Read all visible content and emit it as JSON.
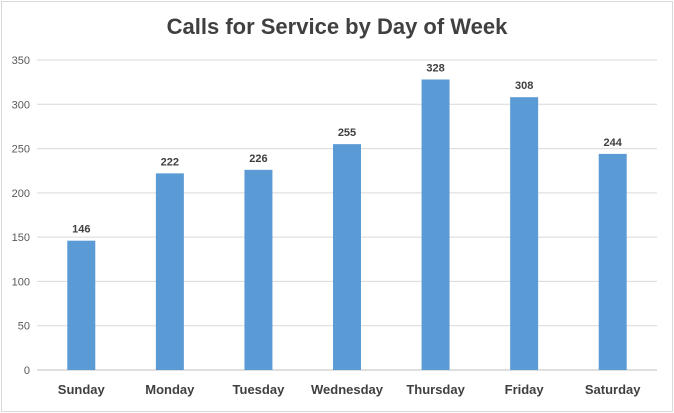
{
  "chart_data": {
    "type": "bar",
    "title": "Calls for Service by Day of Week",
    "categories": [
      "Sunday",
      "Monday",
      "Tuesday",
      "Wednesday",
      "Thursday",
      "Friday",
      "Saturday"
    ],
    "values": [
      146,
      222,
      226,
      255,
      328,
      308,
      244
    ],
    "data_labels": [
      "146",
      "222",
      "226",
      "255",
      "328",
      "308",
      "244"
    ],
    "y_ticks": [
      "0",
      "50",
      "100",
      "150",
      "200",
      "250",
      "300",
      "350"
    ],
    "ylim": [
      0,
      350
    ],
    "grid": true,
    "legend": "none",
    "bar_color": "#5b9bd5"
  }
}
